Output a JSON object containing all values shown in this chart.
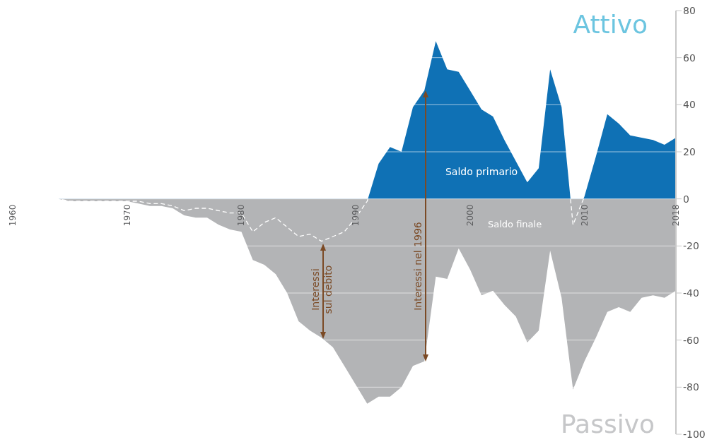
{
  "chart_data": {
    "type": "area",
    "x": [
      1960,
      1961,
      1962,
      1963,
      1964,
      1965,
      1966,
      1967,
      1968,
      1969,
      1970,
      1971,
      1972,
      1973,
      1974,
      1975,
      1976,
      1977,
      1978,
      1979,
      1980,
      1981,
      1982,
      1983,
      1984,
      1985,
      1986,
      1987,
      1988,
      1989,
      1990,
      1991,
      1992,
      1993,
      1994,
      1995,
      1996,
      1997,
      1998,
      1999,
      2000,
      2001,
      2002,
      2003,
      2004,
      2005,
      2006,
      2007,
      2008,
      2009,
      2010,
      2011,
      2012,
      2013,
      2014,
      2015,
      2016,
      2017,
      2018
    ],
    "series": [
      {
        "name": "Saldo finale",
        "color": "#b3b4b6",
        "values": [
          0,
          0,
          0,
          0,
          0,
          -1,
          -1,
          -1,
          -1,
          -1,
          -1,
          -2,
          -3,
          -3,
          -4,
          -7,
          -8,
          -8,
          -11,
          -13,
          -14,
          -26,
          -28,
          -32,
          -40,
          -52,
          -56,
          -59,
          -63,
          -71,
          -79,
          -87,
          -84,
          -84,
          -80,
          -71,
          -69,
          -33,
          -34,
          -21,
          -30,
          -41,
          -39,
          -45,
          -50,
          -61,
          -56,
          -22,
          -42,
          -81,
          -69,
          -59,
          -48,
          -46,
          -48,
          -42,
          -41,
          -42,
          -39
        ]
      },
      {
        "name": "Saldo primario",
        "color": "#0f71b5",
        "line_style": "dashed",
        "values": [
          0,
          0,
          0,
          0,
          0,
          -1,
          -1,
          -1,
          -1,
          -1,
          -1,
          -1,
          -2,
          -2,
          -3,
          -5,
          -4,
          -4,
          -5,
          -6,
          -6,
          -14,
          -10,
          -8,
          -12,
          -16,
          -15,
          -18,
          -16,
          -14,
          -8,
          -1,
          15,
          22,
          20,
          39,
          46,
          67,
          55,
          54,
          46,
          38,
          35,
          25,
          16,
          7,
          13,
          55,
          39,
          -11,
          1,
          18,
          36,
          32,
          27,
          26,
          25,
          23,
          26
        ]
      }
    ],
    "annotations": [
      "Attivo",
      "Passivo",
      "Interessi sul debito",
      "Interessi nel 1996"
    ],
    "xlim": [
      1960,
      2018
    ],
    "xticks": [
      1960,
      1970,
      1980,
      1990,
      2000,
      2010,
      2018
    ],
    "ylim": [
      -100,
      80
    ],
    "yticks": [
      80,
      60,
      40,
      20,
      0,
      -20,
      -40,
      -60,
      -80,
      -100
    ],
    "grid": "y",
    "legend": false
  }
}
